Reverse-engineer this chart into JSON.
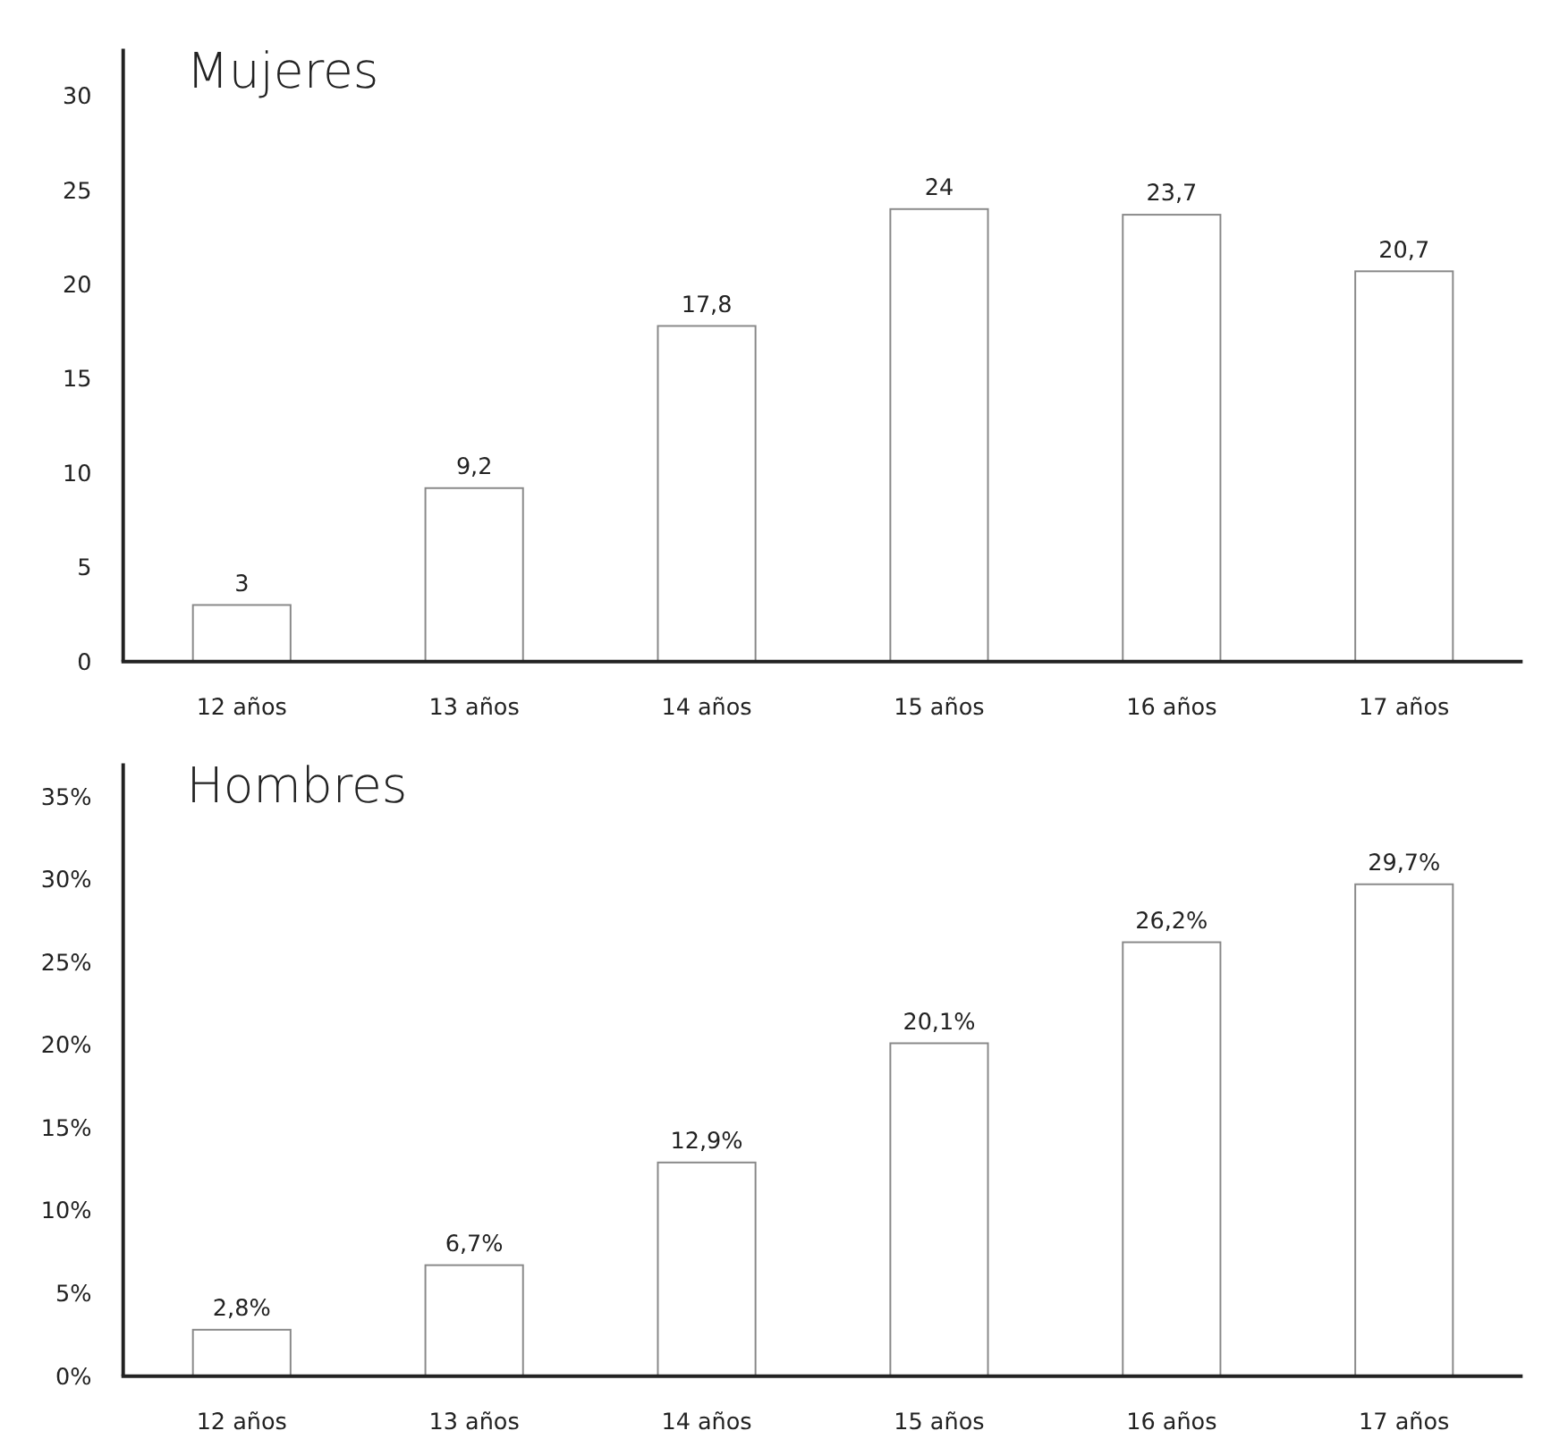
{
  "chart_data": [
    {
      "type": "bar",
      "title": "Mujeres",
      "categories": [
        "12 años",
        "13 años",
        "14 años",
        "15 años",
        "16 años",
        "17 años"
      ],
      "values": [
        3,
        9.2,
        17.8,
        24,
        23.7,
        20.7
      ],
      "color": "#ffffff",
      "value_labels": [
        "3",
        "9,2",
        "17,8",
        "24",
        "23,7",
        "20,7"
      ],
      "ylim": [
        0,
        32.5
      ],
      "yticks": [
        0,
        5,
        10,
        15,
        20,
        25,
        30
      ],
      "grid": false
    },
    {
      "type": "bar",
      "title": "Hombres",
      "categories": [
        "12 años",
        "13 años",
        "14 años",
        "15 años",
        "16 años",
        "17 años"
      ],
      "values": [
        2.8,
        6.7,
        12.9,
        20.1,
        26.2,
        29.7
      ],
      "color": "#ffffff",
      "value_labels": [
        "2,8%",
        "6,7%",
        "12,9%",
        "20,1%",
        "26,2%",
        "29,7%"
      ],
      "ylim": [
        0,
        37
      ],
      "yticks": [
        {
          "value": 0,
          "label": "0%"
        },
        {
          "value": 5,
          "label": "5%"
        },
        {
          "value": 10,
          "label": "10%"
        },
        {
          "value": 15,
          "label": "15%"
        },
        {
          "value": 20,
          "label": "20%"
        },
        {
          "value": 25,
          "label": "25%"
        },
        {
          "value": 30,
          "label": "30%"
        },
        {
          "value": 35,
          "label": "35%"
        }
      ],
      "grid": false
    }
  ]
}
